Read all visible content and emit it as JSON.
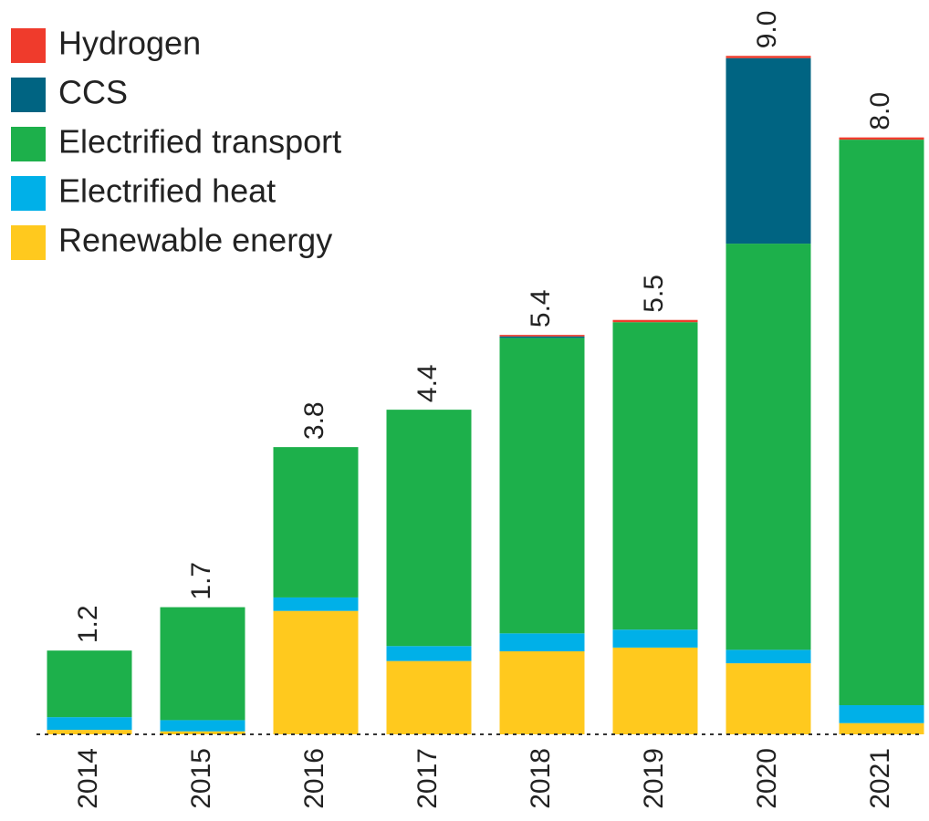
{
  "chart_data": {
    "type": "stacked_bar",
    "categories": [
      "2014",
      "2015",
      "2016",
      "2017",
      "2018",
      "2019",
      "2020",
      "2021"
    ],
    "series": [
      {
        "name": "Renewable energy",
        "color": "#ffc91e",
        "values": [
          0.06,
          0.04,
          1.65,
          0.98,
          1.11,
          1.16,
          0.95,
          0.15
        ]
      },
      {
        "name": "Electrified heat",
        "color": "#00b0e8",
        "values": [
          0.17,
          0.15,
          0.18,
          0.2,
          0.24,
          0.24,
          0.18,
          0.24
        ]
      },
      {
        "name": "Electrified transport",
        "color": "#1db04b",
        "values": [
          0.89,
          1.51,
          2.01,
          3.16,
          3.95,
          4.11,
          5.43,
          7.56
        ]
      },
      {
        "name": "CCS",
        "color": "#006482",
        "values": [
          0,
          0,
          0,
          0,
          0.02,
          0,
          2.48,
          0
        ]
      },
      {
        "name": "Hydrogen",
        "color": "#ef3b2c",
        "values": [
          0,
          0,
          0,
          0,
          0.02,
          0.03,
          0.03,
          0.03
        ]
      }
    ],
    "total_labels": [
      "1.2",
      "1.7",
      "3.8",
      "4.4",
      "5.4",
      "5.5",
      "9.0",
      "8.0"
    ],
    "legend": "top-left"
  }
}
